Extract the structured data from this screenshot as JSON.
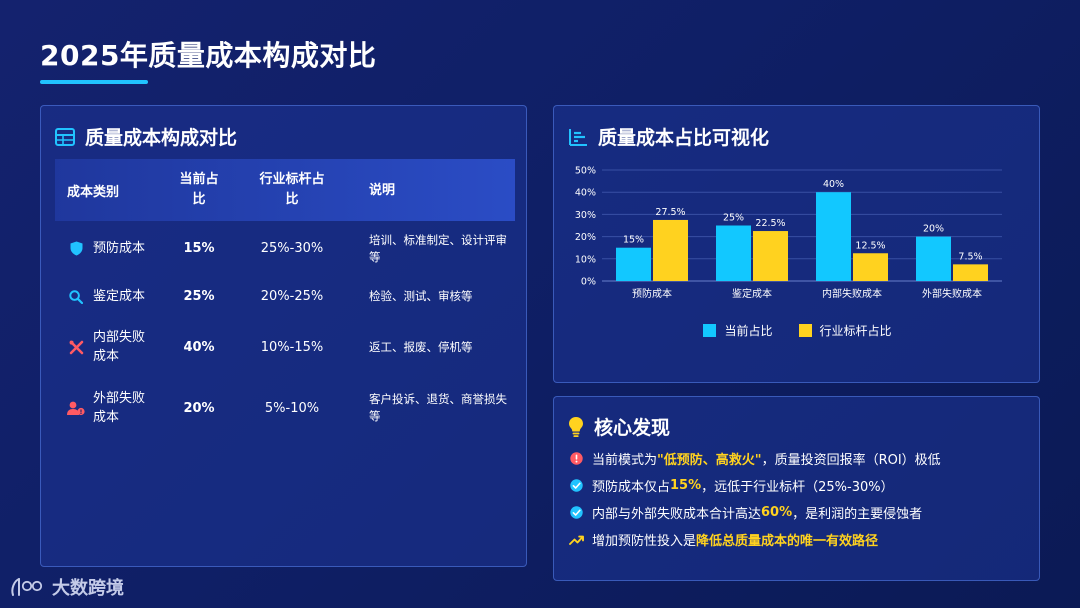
{
  "page": {
    "title": "2025年质量成本构成对比"
  },
  "table_panel": {
    "title": "质量成本构成对比",
    "headers": {
      "category": "成本类别",
      "current": "当前占\n比",
      "benchmark": "行业标杆占\n比",
      "note": "说明"
    },
    "rows": [
      {
        "icon": "shield-icon",
        "category": "预防成本",
        "current": "15%",
        "benchmark": "25%-30%",
        "note": "培训、标准制定、设计评审等"
      },
      {
        "icon": "search-icon",
        "category": "鉴定成本",
        "current": "25%",
        "benchmark": "20%-25%",
        "note": "检验、测试、审核等"
      },
      {
        "icon": "tools-icon",
        "category": "内部失败成本",
        "current": "40%",
        "benchmark": "10%-15%",
        "note": "返工、报废、停机等"
      },
      {
        "icon": "user-warning-icon",
        "category": "外部失败成本",
        "current": "20%",
        "benchmark": "5%-10%",
        "note": "客户投诉、退货、商誉损失等"
      }
    ]
  },
  "chart_panel": {
    "title": "质量成本占比可视化"
  },
  "chart_data": {
    "type": "bar",
    "categories": [
      "预防成本",
      "鉴定成本",
      "内部失败成本",
      "外部失败成本"
    ],
    "series": [
      {
        "name": "当前占比",
        "values": [
          15,
          25,
          40,
          20
        ],
        "labels": [
          "15%",
          "25%",
          "40%",
          "20%"
        ],
        "color": "#12c8ff"
      },
      {
        "name": "行业标杆占比",
        "values": [
          27.5,
          22.5,
          12.5,
          7.5
        ],
        "labels": [
          "27.5%",
          "22.5%",
          "12.5%",
          "7.5%"
        ],
        "color": "#ffd21f"
      }
    ],
    "yticks": [
      "0%",
      "10%",
      "20%",
      "30%",
      "40%",
      "50%"
    ],
    "ylim": [
      0,
      50
    ],
    "grid": true,
    "legend": "bottom"
  },
  "findings_panel": {
    "title": "核心发现",
    "items": [
      {
        "icon": "alert-icon",
        "parts": [
          "当前模式为",
          "\"低预防、高救火\"",
          "，质量投资回报率（ROI）极低"
        ]
      },
      {
        "icon": "check-icon",
        "parts": [
          "预防成本仅占",
          "15%",
          "，远低于行业标杆（25%-30%）"
        ]
      },
      {
        "icon": "check-icon",
        "parts": [
          "内部与外部失败成本合计高达",
          "60%",
          "，是利润的主要侵蚀者"
        ]
      },
      {
        "icon": "trend-up-icon",
        "parts": [
          "增加预防性投入是",
          "降低总质量成本的唯一有效路径",
          ""
        ]
      }
    ]
  },
  "brand": {
    "name": "大数跨境"
  },
  "colors": {
    "accent": "#21c3ff",
    "yellow": "#ffd21f",
    "cyan": "#12c8ff",
    "red": "#ff5a63"
  }
}
